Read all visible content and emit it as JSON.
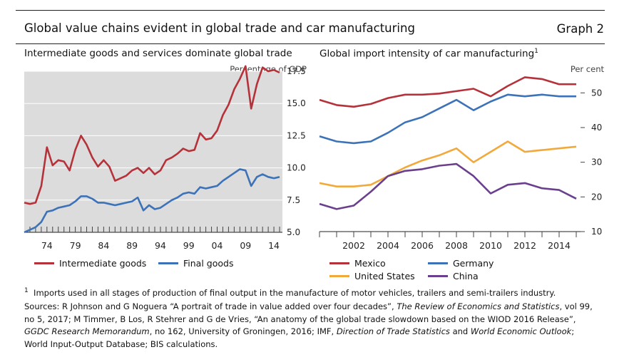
{
  "header": {
    "title": "Global value chains evident in global trade and car manufacturing",
    "graph": "Graph 2"
  },
  "left": {
    "subtitle": "Intermediate goods and services dominate global trade",
    "unit": "Percentage of GDP"
  },
  "right": {
    "subtitle": "Global import intensity of car manufacturing",
    "sup": "1",
    "unit": "Per cent"
  },
  "colors": {
    "red": "#B5323A",
    "blue": "#3C72B8",
    "orange": "#F2A93B",
    "purple": "#6A3F8E",
    "panel_bg": "#dcdcdc"
  },
  "chart_data": [
    {
      "type": "line",
      "ylim": [
        5.0,
        17.5
      ],
      "xlim": [
        1970,
        2015.5
      ],
      "x_ticks": [
        "74",
        "79",
        "84",
        "89",
        "94",
        "99",
        "04",
        "09",
        "14"
      ],
      "y_ticks": [
        "5.0",
        "7.5",
        "10.0",
        "12.5",
        "15.0",
        "17.5"
      ],
      "grid": true,
      "legend": "bottom",
      "x": [
        1970,
        1971,
        1972,
        1973,
        1974,
        1975,
        1976,
        1977,
        1978,
        1979,
        1980,
        1981,
        1982,
        1983,
        1984,
        1985,
        1986,
        1987,
        1988,
        1989,
        1990,
        1991,
        1992,
        1993,
        1994,
        1995,
        1996,
        1997,
        1998,
        1999,
        2000,
        2001,
        2002,
        2003,
        2004,
        2005,
        2006,
        2007,
        2008,
        2009,
        2010,
        2011,
        2012,
        2013,
        2014,
        2015
      ],
      "series": [
        {
          "name": "Intermediate goods",
          "color": "#B5323A",
          "values": [
            7.3,
            7.2,
            7.3,
            8.6,
            11.6,
            10.2,
            10.6,
            10.5,
            9.8,
            11.4,
            12.5,
            11.8,
            10.8,
            10.1,
            10.6,
            10.1,
            9.0,
            9.2,
            9.4,
            9.8,
            10.0,
            9.6,
            10.0,
            9.5,
            9.8,
            10.6,
            10.8,
            11.1,
            11.5,
            11.3,
            11.4,
            12.7,
            12.2,
            12.3,
            12.9,
            14.1,
            14.9,
            16.1,
            16.9,
            17.9,
            14.6,
            16.5,
            17.8,
            17.5,
            17.6,
            17.4
          ]
        },
        {
          "name": "Final goods",
          "color": "#3C72B8",
          "values": [
            5.0,
            5.2,
            5.4,
            5.8,
            6.6,
            6.7,
            6.9,
            7.0,
            7.1,
            7.4,
            7.8,
            7.8,
            7.6,
            7.3,
            7.3,
            7.2,
            7.1,
            7.2,
            7.3,
            7.4,
            7.7,
            6.7,
            7.1,
            6.8,
            6.9,
            7.2,
            7.5,
            7.7,
            8.0,
            8.1,
            8.0,
            8.5,
            8.4,
            8.5,
            8.6,
            9.0,
            9.3,
            9.6,
            9.9,
            9.8,
            8.6,
            9.3,
            9.5,
            9.3,
            9.2,
            9.3
          ]
        }
      ]
    },
    {
      "type": "line",
      "ylim": [
        10,
        55
      ],
      "xlim": [
        2000,
        2015.5
      ],
      "x_ticks": [
        "2002",
        "2004",
        "2006",
        "2008",
        "2010",
        "2012",
        "2014"
      ],
      "y_ticks": [
        "10",
        "20",
        "30",
        "40",
        "50"
      ],
      "grid": false,
      "legend": "bottom",
      "x": [
        2000,
        2001,
        2002,
        2003,
        2004,
        2005,
        2006,
        2007,
        2008,
        2009,
        2010,
        2011,
        2012,
        2013,
        2014,
        2015
      ],
      "series": [
        {
          "name": "Mexico",
          "color": "#B5323A",
          "values": [
            48.0,
            46.5,
            46.0,
            46.8,
            48.5,
            49.5,
            49.5,
            49.8,
            50.5,
            51.2,
            49.0,
            52.0,
            54.5,
            54.0,
            52.5,
            52.5
          ]
        },
        {
          "name": "Germany",
          "color": "#3C72B8",
          "values": [
            37.5,
            36.0,
            35.5,
            36.0,
            38.5,
            41.5,
            43.0,
            45.5,
            48.0,
            45.0,
            47.5,
            49.5,
            49.0,
            49.5,
            49.0,
            49.0
          ]
        },
        {
          "name": "United States",
          "color": "#F2A93B",
          "values": [
            24.0,
            23.0,
            23.0,
            23.5,
            26.0,
            28.5,
            30.5,
            32.0,
            34.0,
            30.0,
            33.0,
            36.0,
            33.0,
            33.5,
            34.0,
            34.5
          ]
        },
        {
          "name": "China",
          "color": "#6A3F8E",
          "values": [
            18.0,
            16.5,
            17.5,
            21.5,
            26.0,
            27.5,
            28.0,
            29.0,
            29.5,
            26.0,
            21.0,
            23.5,
            24.0,
            22.5,
            22.0,
            19.5
          ]
        }
      ]
    }
  ],
  "notes": {
    "footnote_num": "1",
    "footnote": "Imports used in all stages of production of final output in the manufacture of motor vehicles, trailers and semi-trailers industry.",
    "s1": "Sources: R Johnson and G Noguera “A portrait of trade in value added over four decades”, ",
    "s2": "The Review of Economics and Statistics",
    "s3": ", vol 99, no 5, 2017; M Timmer, B Los, R Stehrer and G de Vries, “An anatomy of the global trade slowdown based on the WIOD 2016 Release”, ",
    "s4": "GGDC Research Memorandum",
    "s5": ", no 162, University of Groningen, 2016; IMF, ",
    "s6": "Direction of Trade Statistics",
    "s7": " and ",
    "s8": "World Economic Outlook",
    "s9": "; World Input-Output Database; BIS calculations."
  }
}
